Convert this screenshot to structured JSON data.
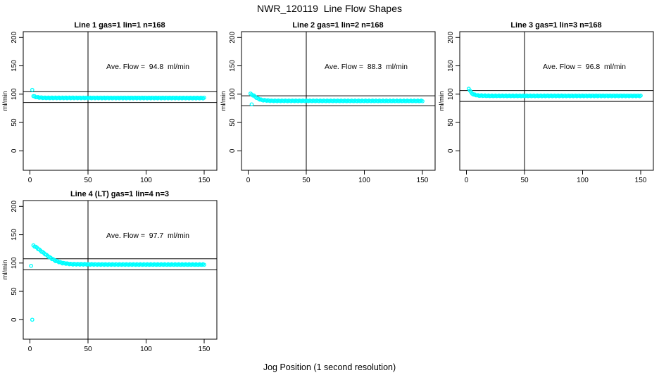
{
  "title": "NWR_120119  Line Flow Shapes",
  "xlabel": "Jog Position (1 second resolution)",
  "colors": {
    "points": "#00FFFF",
    "axis": "#000000",
    "background": "#FFFFFF"
  },
  "chart_data": [
    {
      "type": "scatter",
      "title": "Line 1 gas=1 lin=1 n=168",
      "line": "Line 1",
      "gas": 1,
      "lin": 1,
      "n": 168,
      "annotation": "Ave. Flow =  94.8  ml/min",
      "ave_flow_ml_min": 94.8,
      "ylabel": "ml/min",
      "x_ticks": [
        0,
        50,
        100,
        150
      ],
      "y_ticks": [
        0,
        50,
        100,
        150,
        200
      ],
      "xlim": [
        -6,
        161
      ],
      "ylim": [
        -34,
        210
      ],
      "vline_x": 50,
      "hlines": [
        104.3,
        85.3
      ],
      "trend": [
        [
          3,
          96.5
        ],
        [
          6,
          94.5
        ],
        [
          12,
          93.5
        ],
        [
          150,
          93.2
        ]
      ],
      "extra_points": [
        [
          2,
          107.5
        ]
      ]
    },
    {
      "type": "scatter",
      "title": "Line 2 gas=1 lin=2 n=168",
      "line": "Line 2",
      "gas": 1,
      "lin": 2,
      "n": 168,
      "annotation": "Ave. Flow =  88.3  ml/min",
      "ave_flow_ml_min": 88.3,
      "ylabel": "ml/min",
      "x_ticks": [
        0,
        50,
        100,
        150
      ],
      "y_ticks": [
        0,
        50,
        100,
        150,
        200
      ],
      "xlim": [
        -6,
        161
      ],
      "ylim": [
        -34,
        210
      ],
      "vline_x": 50,
      "hlines": [
        97.1,
        79.5
      ],
      "trend": [
        [
          2,
          100.5
        ],
        [
          5,
          97
        ],
        [
          8,
          92.5
        ],
        [
          12,
          89.5
        ],
        [
          20,
          88.2
        ],
        [
          150,
          88
        ]
      ],
      "extra_points": [
        [
          3,
          82
        ]
      ]
    },
    {
      "type": "scatter",
      "title": "Line 3 gas=1 lin=3 n=168",
      "line": "Line 3",
      "gas": 1,
      "lin": 3,
      "n": 168,
      "annotation": "Ave. Flow =  96.8  ml/min",
      "ave_flow_ml_min": 96.8,
      "ylabel": "ml/min",
      "x_ticks": [
        0,
        50,
        100,
        150
      ],
      "y_ticks": [
        0,
        50,
        100,
        150,
        200
      ],
      "xlim": [
        -6,
        161
      ],
      "ylim": [
        -34,
        210
      ],
      "vline_x": 50,
      "hlines": [
        106.5,
        87.1
      ],
      "trend": [
        [
          2,
          110
        ],
        [
          4,
          103
        ],
        [
          6,
          99.5
        ],
        [
          10,
          97.5
        ],
        [
          20,
          97
        ],
        [
          150,
          97
        ]
      ],
      "extra_points": []
    },
    {
      "type": "scatter",
      "title": "Line 4 (LT) gas=1 lin=4 n=3",
      "line": "Line 4 (LT)",
      "gas": 1,
      "lin": 4,
      "n": 3,
      "annotation": "Ave. Flow =  97.7  ml/min",
      "ave_flow_ml_min": 97.7,
      "ylabel": "ml/min",
      "x_ticks": [
        0,
        50,
        100,
        150
      ],
      "y_ticks": [
        0,
        50,
        100,
        150,
        200
      ],
      "xlim": [
        -6,
        161
      ],
      "ylim": [
        -34,
        210
      ],
      "vline_x": 50,
      "hlines": [
        107.5,
        87.9
      ],
      "trend": [
        [
          3,
          131
        ],
        [
          6,
          127
        ],
        [
          9,
          122
        ],
        [
          13,
          116
        ],
        [
          17,
          110
        ],
        [
          22,
          104
        ],
        [
          28,
          100
        ],
        [
          36,
          98
        ],
        [
          60,
          97.5
        ],
        [
          150,
          97.3
        ]
      ],
      "extra_points": [
        [
          1,
          95
        ],
        [
          2,
          0
        ]
      ]
    }
  ]
}
